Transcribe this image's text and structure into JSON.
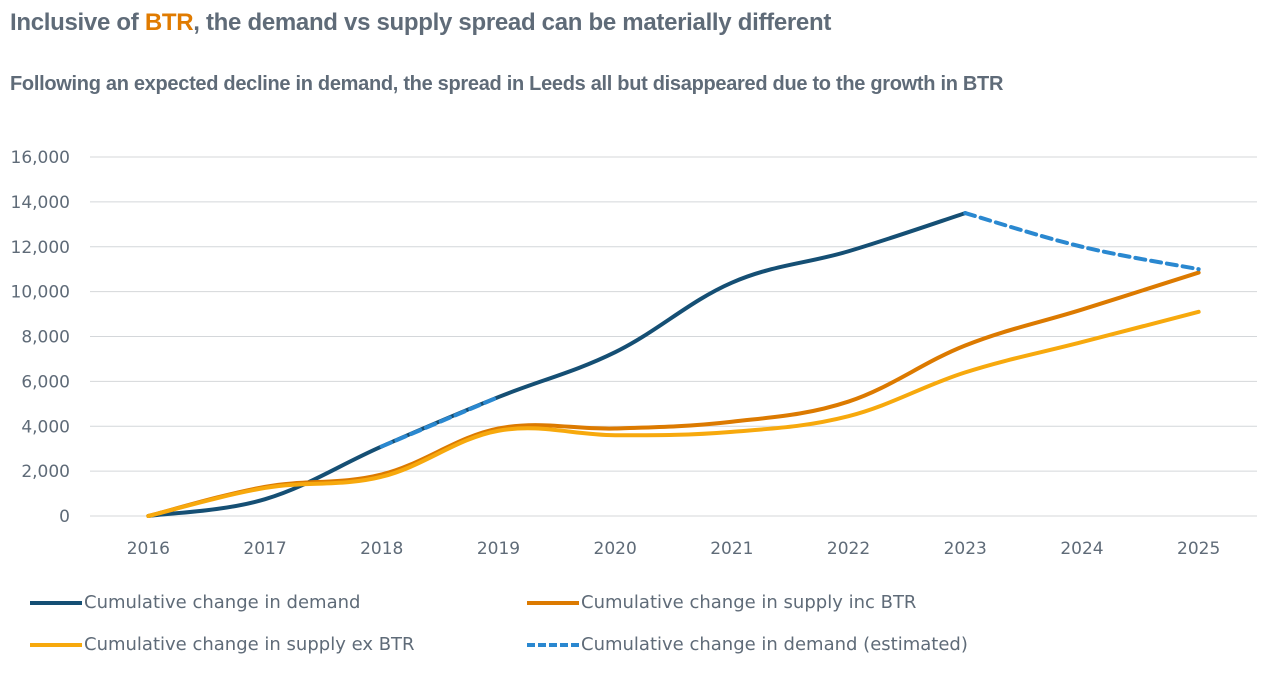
{
  "header": {
    "title_prefix": "Inclusive of ",
    "title_highlight": "BTR",
    "title_suffix": ", the demand vs supply spread can be materially different",
    "subtitle": "Following an expected decline in demand, the spread in Leeds all but disappeared due to the growth in BTR"
  },
  "colors": {
    "title": "#5f6b78",
    "highlight": "#e07b00",
    "demand": "#154f74",
    "supply_inc_btr": "#dc7a00",
    "supply_ex_btr": "#f7a90d",
    "demand_estimated": "#2a88d0",
    "grid": "#d4d7da"
  },
  "chart_data": {
    "type": "line",
    "title": "Following an expected decline in demand, the spread in Leeds all but disappeared due to the growth in BTR",
    "xlabel": "",
    "ylabel": "",
    "categories": [
      "2016",
      "2017",
      "2018",
      "2019",
      "2020",
      "2021",
      "2022",
      "2023",
      "2024",
      "2025"
    ],
    "ylim": [
      0,
      16000
    ],
    "yticks": [
      0,
      2000,
      4000,
      6000,
      8000,
      10000,
      12000,
      14000,
      16000
    ],
    "ytick_labels": [
      "0",
      "2,000",
      "4,000",
      "6,000",
      "8,000",
      "10,000",
      "12,000",
      "14,000",
      "16,000"
    ],
    "grid": true,
    "legend_position": "bottom",
    "series": [
      {
        "key": "demand",
        "name": "Cumulative change in demand",
        "style": "solid",
        "values": [
          0,
          750,
          3100,
          5300,
          7300,
          10400,
          11800,
          13500,
          null,
          null
        ]
      },
      {
        "key": "supply_ex_btr",
        "name": "Cumulative change in supply ex BTR",
        "style": "solid",
        "values": [
          0,
          1250,
          1750,
          3800,
          3600,
          3750,
          4450,
          6400,
          7750,
          9100
        ]
      },
      {
        "key": "supply_inc_btr",
        "name": "Cumulative change in supply inc BTR",
        "style": "solid",
        "values": [
          0,
          1300,
          1850,
          3900,
          3900,
          4200,
          5100,
          7600,
          9200,
          10850
        ]
      },
      {
        "key": "demand_estimated",
        "name": "Cumulative change in demand (estimated)",
        "style": "dashed",
        "values": [
          null,
          null,
          3100,
          5300,
          null,
          null,
          null,
          13500,
          12000,
          11000
        ]
      }
    ]
  },
  "legend": [
    {
      "label": "Cumulative change in demand",
      "key": "demand",
      "style": "solid"
    },
    {
      "label": "Cumulative change in supply inc BTR",
      "key": "supply_inc_btr",
      "style": "solid"
    },
    {
      "label": "Cumulative change in supply ex BTR",
      "key": "supply_ex_btr",
      "style": "solid"
    },
    {
      "label": "Cumulative change in demand (estimated)",
      "key": "demand_estimated",
      "style": "dashed"
    }
  ]
}
